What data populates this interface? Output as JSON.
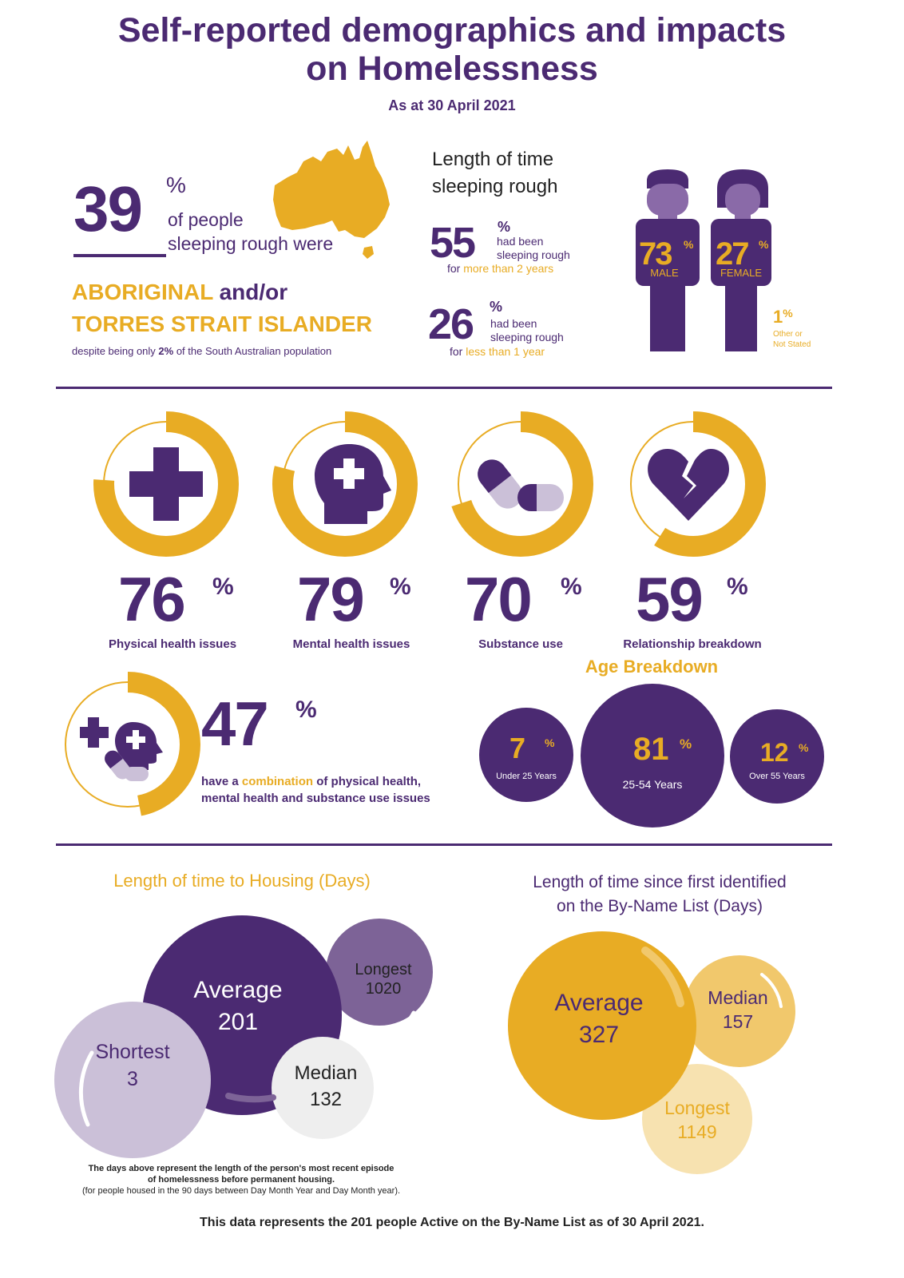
{
  "header": {
    "title_line1": "Self-reported demographics and impacts",
    "title_line2": "on Homelessness",
    "date": "As at 30 April 2021"
  },
  "aboriginal": {
    "value": "39",
    "pct_sign": "%",
    "text1": "of people",
    "text2": "sleeping rough were",
    "highlight": "ABORIGINAL",
    "and_or": "and/or",
    "line2": "TORRES STRAIT ISLANDER",
    "footnote_pre": "despite being only ",
    "footnote_pct": "2%",
    "footnote_post": " of the South Australian population"
  },
  "rough": {
    "title1": "Length of time",
    "title2": "sleeping rough",
    "a_value": "55",
    "a_pct": "%",
    "a_text1": "had been",
    "a_text2": "sleeping rough",
    "a_pre": "for ",
    "a_highlight": "more than 2 years",
    "b_value": "26",
    "b_pct": "%",
    "b_text1": "had been",
    "b_text2": "sleeping rough",
    "b_pre": "for ",
    "b_highlight": "less than 1 year"
  },
  "gender": {
    "male_value": "73",
    "male_pct": "%",
    "male_label": "MALE",
    "female_value": "27",
    "female_pct": "%",
    "female_label": "FEMALE",
    "other_value": "1",
    "other_pct": "%",
    "other_label1": "Other or",
    "other_label2": "Not Stated"
  },
  "issues": [
    {
      "value": "76",
      "pct": "%",
      "label": "Physical health issues",
      "fraction": 0.76,
      "icon": "medical-cross-icon"
    },
    {
      "value": "79",
      "pct": "%",
      "label": "Mental health issues",
      "fraction": 0.79,
      "icon": "head-cross-icon"
    },
    {
      "value": "70",
      "pct": "%",
      "label": "Substance use",
      "fraction": 0.7,
      "icon": "pill-icon"
    },
    {
      "value": "59",
      "pct": "%",
      "label": "Relationship breakdown",
      "fraction": 0.59,
      "icon": "broken-heart-icon"
    }
  ],
  "combination": {
    "value": "47",
    "pct": "%",
    "fraction": 0.47,
    "text_pre": "have a ",
    "text_highlight": "combination",
    "text_post": " of physical health,",
    "text_line2": "mental health and substance use issues"
  },
  "age": {
    "title": "Age Breakdown",
    "groups": [
      {
        "value": "7",
        "pct": "%",
        "label": "Under 25 Years"
      },
      {
        "value": "81",
        "pct": "%",
        "label": "25-54 Years"
      },
      {
        "value": "12",
        "pct": "%",
        "label": "Over 55 Years"
      }
    ]
  },
  "housing": {
    "title": "Length of time to Housing (Days)",
    "average_label": "Average",
    "average_value": "201",
    "longest_label": "Longest",
    "longest_value": "1020",
    "shortest_label": "Shortest",
    "shortest_value": "3",
    "median_label": "Median",
    "median_value": "132",
    "note1": "The days above represent the length of the person's most recent episode",
    "note2": "of homelessness before permanent housing.",
    "note3": "(for people housed in the 90 days between Day Month Year and Day Month year)."
  },
  "byname": {
    "title1": "Length of time since first identified",
    "title2": "on the By-Name List (Days)",
    "average_label": "Average",
    "average_value": "327",
    "median_label": "Median",
    "median_value": "157",
    "longest_label": "Longest",
    "longest_value": "1149"
  },
  "footer": "This data represents the 201 people Active on the By-Name List as of 30 April 2021.",
  "colors": {
    "purple": "#4b2a72",
    "gold": "#e8ac24",
    "lavender": "#cbc0d8",
    "light_gold": "#f1c86c",
    "pale_gold": "#f7e2b0"
  }
}
